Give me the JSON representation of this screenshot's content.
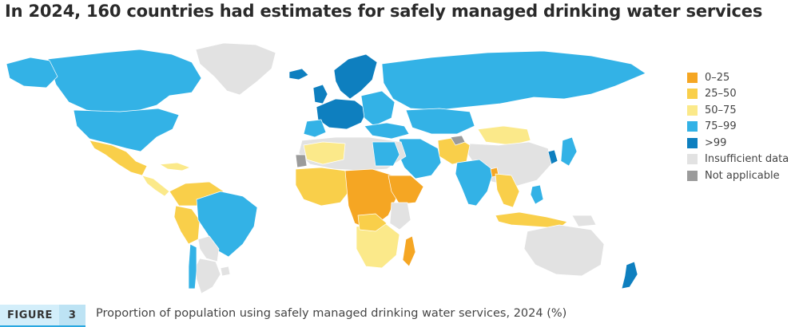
{
  "title": "In 2024, 160 countries had estimates for safely managed drinking water services",
  "figure": {
    "label": "FIGURE",
    "number": "3"
  },
  "caption": "Proportion of population using safely managed drinking water services, 2024 (%)",
  "legend": [
    {
      "key": "q0",
      "label": "0–25",
      "color": "#f5a623"
    },
    {
      "key": "q1",
      "label": "25–50",
      "color": "#f9cf4a"
    },
    {
      "key": "q2",
      "label": "50–75",
      "color": "#fbe98a"
    },
    {
      "key": "q3",
      "label": "75–99",
      "color": "#33b2e6"
    },
    {
      "key": "q4",
      "label": ">99",
      "color": "#0e7fbf"
    },
    {
      "key": "na",
      "label": "Insufficient data",
      "color": "#e2e2e2"
    },
    {
      "key": "nap",
      "label": "Not applicable",
      "color": "#9b9b9b"
    }
  ]
}
